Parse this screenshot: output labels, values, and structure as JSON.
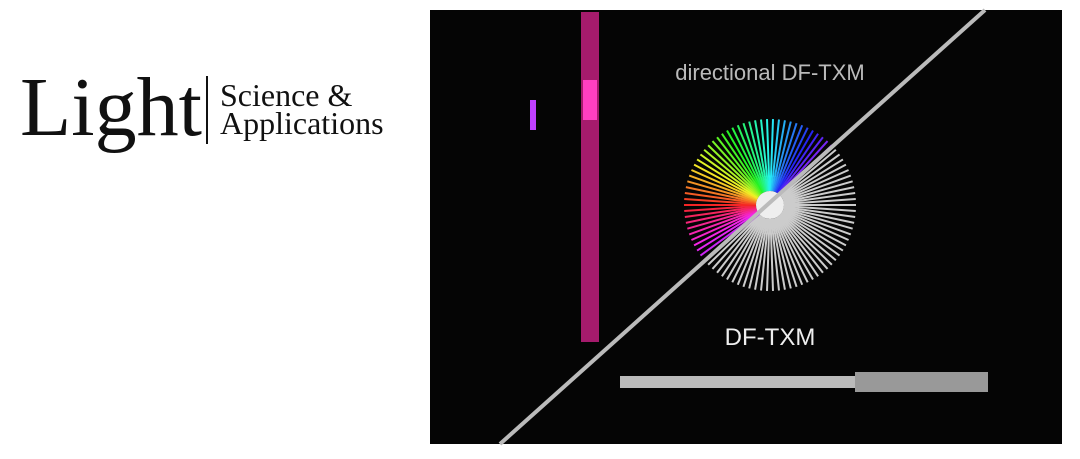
{
  "logo": {
    "word": "Light",
    "line1": "Science &",
    "line2": "Applications"
  },
  "image": {
    "upper_label": "directional DF-TXM",
    "lower_label": "DF-TXM"
  }
}
